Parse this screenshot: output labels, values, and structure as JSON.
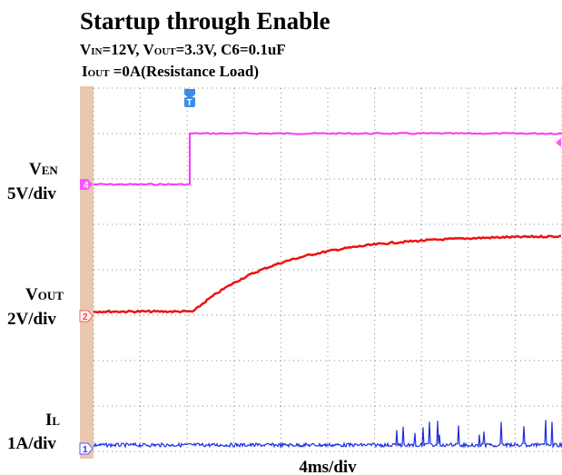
{
  "title": "Startup through Enable",
  "conditions": {
    "line1": [
      "V",
      "IN",
      "=12V, V",
      "OUT",
      "=3.3V,  C6=0.1uF"
    ],
    "line2": [
      "I",
      "OUT",
      " =0A(Resistance Load)"
    ]
  },
  "channels": [
    {
      "name": [
        "V",
        "EN"
      ],
      "scale": "5V/div",
      "marker": "4"
    },
    {
      "name": [
        "V",
        "OUT"
      ],
      "scale": "2V/div",
      "marker": "2"
    },
    {
      "name": [
        "I",
        "L"
      ],
      "scale": "1A/div",
      "marker": "1"
    }
  ],
  "timebase": "4ms/div",
  "trigger_marker": "T"
}
